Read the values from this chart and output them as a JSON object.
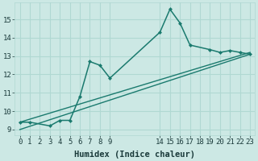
{
  "xlabel": "Humidex (Indice chaleur)",
  "bg_color": "#cce8e4",
  "line_color": "#1a7a6e",
  "grid_color": "#b0d8d2",
  "xlim": [
    -0.5,
    23.5
  ],
  "ylim": [
    8.7,
    15.9
  ],
  "xticks": [
    0,
    1,
    2,
    3,
    4,
    5,
    6,
    7,
    8,
    9,
    14,
    15,
    16,
    17,
    18,
    19,
    20,
    21,
    22,
    23
  ],
  "yticks": [
    9,
    10,
    11,
    12,
    13,
    14,
    15
  ],
  "line1_x": [
    0,
    1,
    3,
    4,
    5,
    6,
    7,
    8,
    9,
    14,
    15,
    16,
    17,
    19,
    20,
    21,
    22,
    23
  ],
  "line1_y": [
    9.4,
    9.4,
    9.2,
    9.5,
    9.5,
    10.8,
    12.7,
    12.5,
    11.8,
    14.3,
    15.55,
    14.8,
    13.6,
    13.35,
    13.2,
    13.3,
    13.2,
    13.1
  ],
  "line2_x": [
    0,
    23
  ],
  "line2_y": [
    9.4,
    13.2
  ],
  "line3_x": [
    0,
    23
  ],
  "line3_y": [
    9.0,
    13.1
  ],
  "xlabel_fontsize": 7.5,
  "tick_fontsize": 6.5
}
